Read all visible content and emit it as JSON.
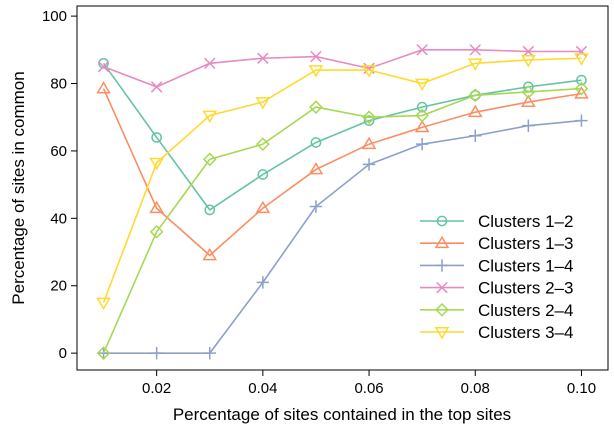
{
  "chart_data": {
    "type": "line",
    "title": "",
    "xlabel": "Percentage of sites contained in the top sites",
    "ylabel": "Percentage of sites in common",
    "xlim": [
      0.005,
      0.105
    ],
    "ylim": [
      -5,
      103
    ],
    "x": [
      0.01,
      0.02,
      0.03,
      0.04,
      0.05,
      0.06,
      0.07,
      0.08,
      0.09,
      0.1
    ],
    "x_ticks": [
      0.02,
      0.04,
      0.06,
      0.08,
      0.1
    ],
    "x_tick_labels": [
      "0.02",
      "0.04",
      "0.06",
      "0.08",
      "0.10"
    ],
    "y_ticks": [
      0,
      20,
      40,
      60,
      80,
      100
    ],
    "y_tick_labels": [
      "0",
      "20",
      "40",
      "60",
      "80",
      "100"
    ],
    "grid": false,
    "legend_position": "bottom-right",
    "series": [
      {
        "name": "Clusters 1–2",
        "color": "#66c2a5",
        "marker": "circle",
        "values": [
          86,
          64,
          42.5,
          53,
          62.5,
          69,
          73,
          76.5,
          79,
          81
        ]
      },
      {
        "name": "Clusters 1–3",
        "color": "#fc8d62",
        "marker": "triangle-up",
        "values": [
          78.5,
          43,
          29,
          43,
          54.5,
          62,
          67,
          71.5,
          74.5,
          77
        ]
      },
      {
        "name": "Clusters 1–4",
        "color": "#8da0cb",
        "marker": "plus",
        "values": [
          0,
          0,
          0,
          21,
          43.5,
          56,
          62,
          64.5,
          67.5,
          69
        ]
      },
      {
        "name": "Clusters 2–3",
        "color": "#e78ac3",
        "marker": "cross",
        "values": [
          85,
          79,
          86,
          87.5,
          88,
          84.5,
          90,
          90,
          89.5,
          89.5
        ]
      },
      {
        "name": "Clusters 2–4",
        "color": "#a6d854",
        "marker": "diamond",
        "values": [
          0,
          36,
          57.5,
          62,
          73,
          70,
          70.5,
          76.5,
          77.5,
          78.5
        ]
      },
      {
        "name": "Clusters 3–4",
        "color": "#ffd92f",
        "marker": "triangle-down",
        "values": [
          15,
          56.5,
          70.5,
          74.5,
          84,
          84,
          80,
          86,
          87,
          87.5
        ]
      }
    ]
  }
}
